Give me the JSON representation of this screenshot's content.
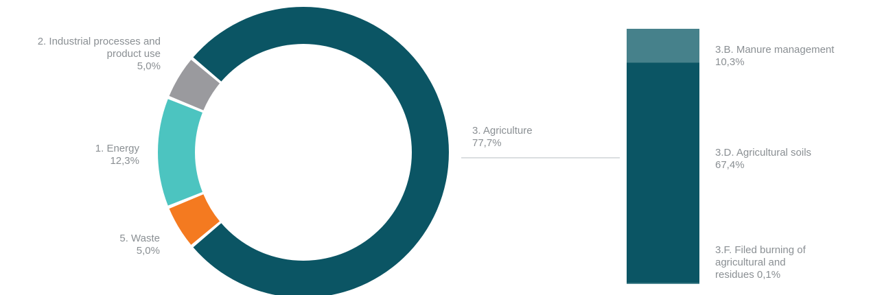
{
  "chart_data": [
    {
      "type": "pie",
      "variant": "donut",
      "categories": [
        "3. Agriculture",
        "5. Waste",
        "1. Energy",
        "2. Industrial processes and product use"
      ],
      "values": [
        77.7,
        5.0,
        12.3,
        5.0
      ],
      "colors": [
        "#0b5564",
        "#f47a20",
        "#4cc4c0",
        "#9a9a9e"
      ],
      "labels": {
        "agriculture": {
          "name": "3. Agriculture",
          "value": "77,7%"
        },
        "waste": {
          "name": "5. Waste",
          "value": "5,0%"
        },
        "energy": {
          "name": "1. Energy",
          "value": "12,3%"
        },
        "industrial": {
          "name_line1": "2. Industrial processes and",
          "name_line2": "product use",
          "value": "5,0%"
        }
      }
    },
    {
      "type": "bar",
      "variant": "stacked-100",
      "categories": [
        "3.F. Filed burning of agricultural and residues",
        "3.D. Agricultural soils",
        "3.B. Manure management"
      ],
      "values": [
        0.1,
        67.4,
        10.3
      ],
      "colors": [
        "#5a8f99",
        "#0b5564",
        "#46818b"
      ],
      "labels": {
        "manure": {
          "name": "3.B. Manure management",
          "value": "10,3%"
        },
        "soils": {
          "name": "3.D. Agricultural soils",
          "value": "67,4%"
        },
        "burning": {
          "line1": "3.F. Filed burning of",
          "line2": "agricultural and",
          "line3": "residues 0,1%"
        }
      }
    }
  ]
}
